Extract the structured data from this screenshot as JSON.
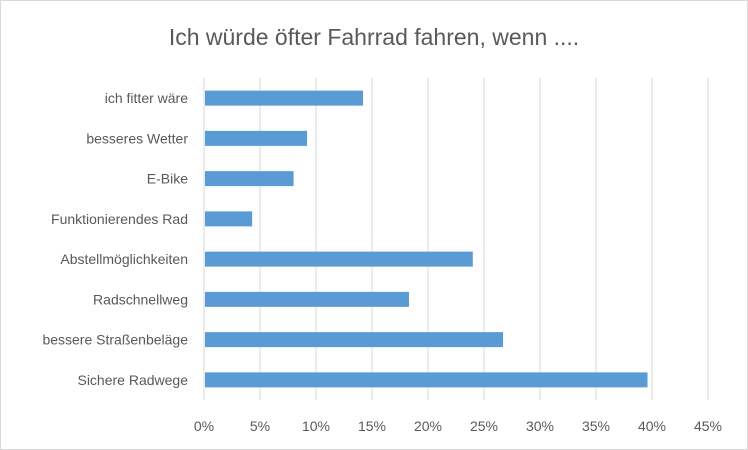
{
  "chart_data": {
    "type": "bar",
    "orientation": "horizontal",
    "title": "Ich würde öfter Fahrrad fahren, wenn ....",
    "categories": [
      "ich fitter wäre",
      "besseres Wetter",
      "E-Bike",
      "Funktionierendes Rad",
      "Abstellmöglichkeiten",
      "Radschnellweg",
      "bessere Straßenbeläge",
      "Sichere Radwege"
    ],
    "values": [
      14.2,
      9.2,
      8.0,
      4.3,
      24.0,
      18.3,
      26.7,
      39.6
    ],
    "unit": "%",
    "xlim": [
      0,
      45
    ],
    "xticks": [
      "0%",
      "5%",
      "10%",
      "15%",
      "20%",
      "25%",
      "30%",
      "35%",
      "40%",
      "45%"
    ],
    "grid": true,
    "legend": "none",
    "bar_color": "#5b9bd5"
  }
}
